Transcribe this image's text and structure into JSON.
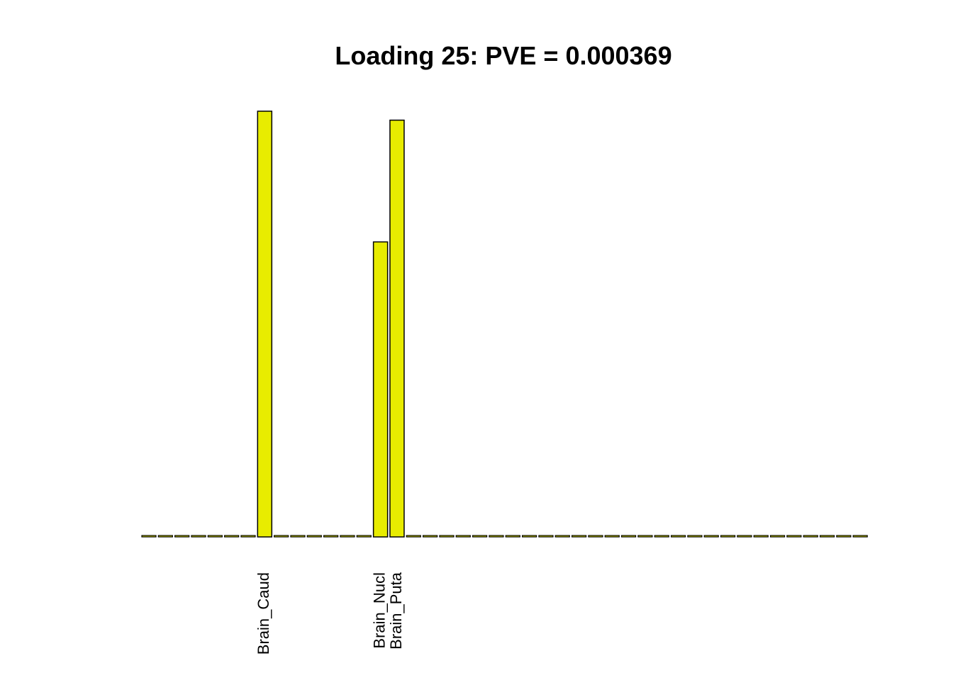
{
  "chart_data": {
    "type": "bar",
    "title": "Loading 25: PVE = 0.000369",
    "xlabel": "",
    "ylabel": "",
    "ylim": [
      0,
      1
    ],
    "grid": false,
    "colors": {
      "bar_fill": "#e8ec00",
      "bar_stroke": "#000000",
      "background": "#ffffff"
    },
    "n_bars": 44,
    "labeled_bars": [
      {
        "index": 7,
        "label": "Brain_Caud",
        "value": 1.0
      },
      {
        "index": 14,
        "label": "Brain_Nucl",
        "value": 0.693
      },
      {
        "index": 15,
        "label": "Brain_Puta",
        "value": 0.979
      }
    ],
    "values": [
      0.002,
      0.002,
      0.002,
      0.003,
      0.002,
      0.002,
      0.002,
      1.0,
      0.002,
      0.002,
      0.002,
      0.002,
      0.002,
      0.002,
      0.693,
      0.979,
      0.002,
      0.002,
      0.002,
      0.002,
      0.002,
      0.002,
      0.002,
      0.002,
      0.002,
      0.002,
      0.002,
      0.002,
      0.002,
      0.002,
      0.002,
      0.002,
      0.002,
      0.002,
      0.002,
      0.002,
      0.002,
      0.002,
      0.002,
      0.002,
      0.002,
      0.002,
      0.002,
      0.002
    ]
  }
}
